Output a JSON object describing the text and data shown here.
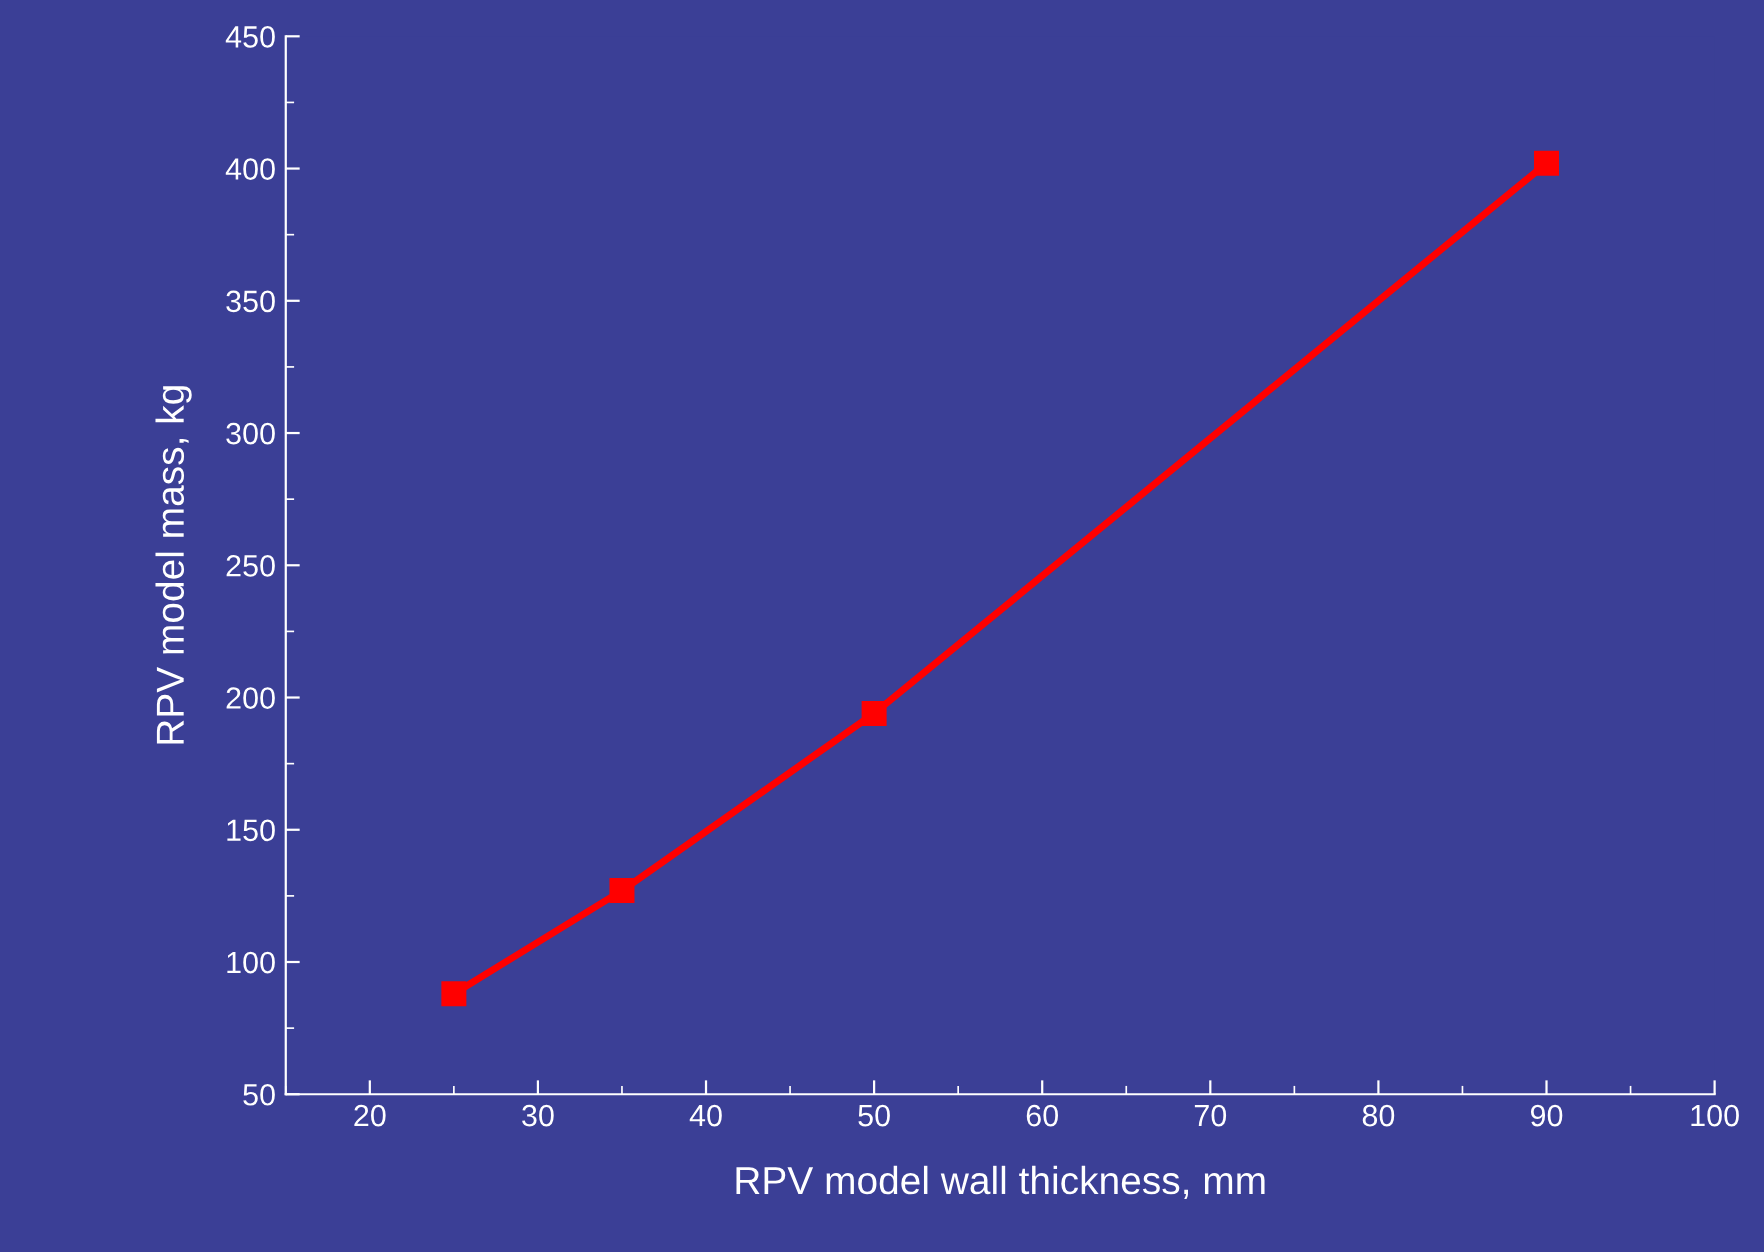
{
  "chart_data": {
    "type": "line",
    "xlabel": "RPV model wall thickness, mm",
    "ylabel": "RPV model mass, kg",
    "x": [
      25,
      35,
      50,
      90
    ],
    "series": [
      {
        "color": "#ff0000",
        "values": [
          88,
          127,
          194,
          402
        ]
      }
    ],
    "xlim": [
      15,
      100
    ],
    "xticks": [
      20,
      30,
      40,
      50,
      60,
      70,
      80,
      90,
      100
    ],
    "ylim": [
      50,
      450
    ],
    "yticks": [
      50,
      100,
      150,
      200,
      250,
      300,
      350,
      400,
      450
    ],
    "marker": "square",
    "line_style": "solid",
    "grid": false,
    "legend": false
  }
}
